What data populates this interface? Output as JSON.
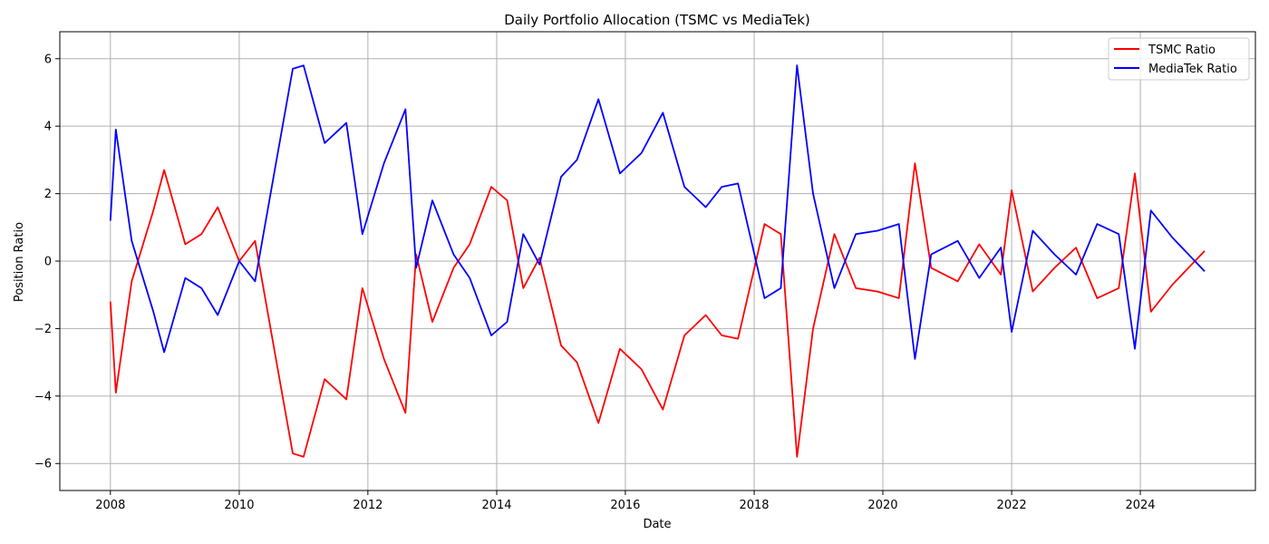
{
  "chart_data": {
    "type": "line",
    "title": "Daily Portfolio Allocation (TSMC vs MediaTek)",
    "xlabel": "Date",
    "ylabel": "Position Ratio",
    "xlim": [
      "2007-03-20",
      "2025-10-15"
    ],
    "ylim": [
      -6.8,
      6.8
    ],
    "grid": true,
    "legend_position": "top-right",
    "x_ticks": [
      "2008",
      "2010",
      "2012",
      "2014",
      "2016",
      "2018",
      "2020",
      "2022",
      "2024"
    ],
    "y_ticks": [
      6,
      4,
      2,
      0,
      -2,
      -4,
      -6
    ],
    "y_tick_labels": [
      "6",
      "4",
      "2",
      "0",
      "−2",
      "−4",
      "−6"
    ],
    "x": [
      "2008-01-01",
      "2008-02-01",
      "2008-05-01",
      "2008-09-01",
      "2008-11-01",
      "2009-03-01",
      "2009-06-01",
      "2009-09-01",
      "2010-01-01",
      "2010-04-01",
      "2010-08-01",
      "2010-11-01",
      "2011-01-01",
      "2011-05-01",
      "2011-09-01",
      "2011-12-01",
      "2012-04-01",
      "2012-08-01",
      "2012-10-01",
      "2013-01-01",
      "2013-05-01",
      "2013-08-01",
      "2013-12-01",
      "2014-03-01",
      "2014-06-01",
      "2014-09-01",
      "2015-01-01",
      "2015-04-01",
      "2015-08-01",
      "2015-12-01",
      "2016-04-01",
      "2016-08-01",
      "2016-12-01",
      "2017-04-01",
      "2017-07-01",
      "2017-10-01",
      "2018-03-01",
      "2018-06-01",
      "2018-09-01",
      "2018-12-01",
      "2019-04-01",
      "2019-08-01",
      "2019-12-01",
      "2020-04-01",
      "2020-07-01",
      "2020-10-01",
      "2021-03-01",
      "2021-07-01",
      "2021-11-01",
      "2022-01-01",
      "2022-05-01",
      "2022-09-01",
      "2023-01-01",
      "2023-05-01",
      "2023-09-01",
      "2023-12-01",
      "2024-03-01",
      "2024-07-01",
      "2024-12-31"
    ],
    "series": [
      {
        "name": "TSMC Ratio",
        "color": "#ff0000",
        "values": [
          -1.2,
          -3.9,
          -0.6,
          1.5,
          2.7,
          0.5,
          0.8,
          1.6,
          0.0,
          0.6,
          -3.0,
          -5.7,
          -5.8,
          -3.5,
          -4.1,
          -0.8,
          -2.9,
          -4.5,
          0.2,
          -1.8,
          -0.2,
          0.5,
          2.2,
          1.8,
          -0.8,
          0.1,
          -2.5,
          -3.0,
          -4.8,
          -2.6,
          -3.2,
          -4.4,
          -2.2,
          -1.6,
          -2.2,
          -2.3,
          1.1,
          0.8,
          -5.8,
          -2.0,
          0.8,
          -0.8,
          -0.9,
          -1.1,
          2.9,
          -0.2,
          -0.6,
          0.5,
          -0.4,
          2.1,
          -0.9,
          -0.2,
          0.4,
          -1.1,
          -0.8,
          2.6,
          -1.5,
          -0.7,
          0.3
        ]
      },
      {
        "name": "MediaTek Ratio",
        "color": "#0000ff",
        "values": [
          1.2,
          3.9,
          0.6,
          -1.5,
          -2.7,
          -0.5,
          -0.8,
          -1.6,
          0.0,
          -0.6,
          3.0,
          5.7,
          5.8,
          3.5,
          4.1,
          0.8,
          2.9,
          4.5,
          -0.2,
          1.8,
          0.2,
          -0.5,
          -2.2,
          -1.8,
          0.8,
          -0.1,
          2.5,
          3.0,
          4.8,
          2.6,
          3.2,
          4.4,
          2.2,
          1.6,
          2.2,
          2.3,
          -1.1,
          -0.8,
          5.8,
          2.0,
          -0.8,
          0.8,
          0.9,
          1.1,
          -2.9,
          0.2,
          0.6,
          -0.5,
          0.4,
          -2.1,
          0.9,
          0.2,
          -0.4,
          1.1,
          0.8,
          -2.6,
          1.5,
          0.7,
          -0.3
        ]
      }
    ]
  }
}
